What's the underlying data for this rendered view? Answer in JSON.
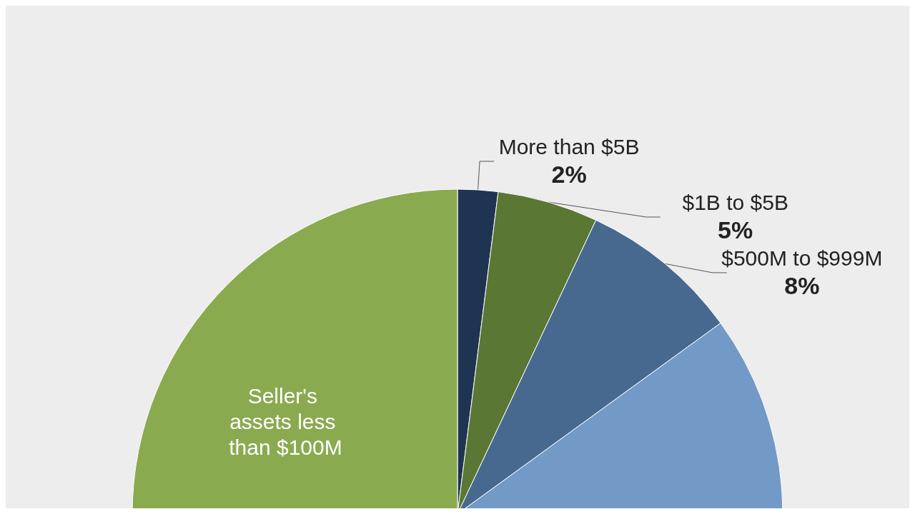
{
  "chart_data": {
    "type": "pie",
    "categories": [
      "More than $5B",
      "$1B to $5B",
      "$500M to $999M",
      null,
      "Seller's assets less than $100M"
    ],
    "values": [
      2,
      5,
      8,
      35,
      50
    ],
    "value_labels": [
      "2%",
      "5%",
      "8%",
      null,
      null
    ],
    "colors": [
      "#1f3452",
      "#5a7734",
      "#48698f",
      "#7399c6",
      "#8aaa50"
    ]
  }
}
